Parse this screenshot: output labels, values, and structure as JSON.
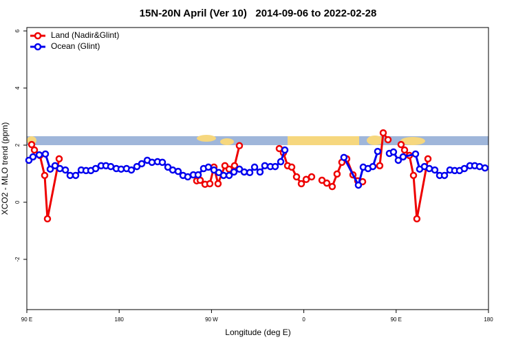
{
  "chart_data": {
    "type": "line",
    "title": "15N-20N April (Ver 10)   2014-09-06 to 2022-02-28",
    "xlabel": "Longitude (deg E)",
    "ylabel": "XCO2 - MLO trend (ppm)",
    "xlim": [
      90,
      540
    ],
    "xticks": [
      {
        "value": 90,
        "label": "90 E"
      },
      {
        "value": 180,
        "label": "180"
      },
      {
        "value": 270,
        "label": "90 W"
      },
      {
        "value": 360,
        "label": "0"
      },
      {
        "value": 450,
        "label": "90 E"
      },
      {
        "value": 540,
        "label": "180"
      }
    ],
    "ylim": [
      -3.76,
      6.12
    ],
    "yticks": [
      -2,
      0,
      2,
      4,
      6
    ],
    "legend": "upper left",
    "series": [
      {
        "name": "Land (Nadir&Glint)",
        "color": "#ee0000",
        "x": [
          94.7,
          97.4,
          102.7,
          107.4,
          110.1,
          121.5,
          200,
          255.6,
          259.0,
          263.7,
          268.4,
          272.4,
          276.4,
          283.1,
          287.2,
          292.5,
          297.2,
          320,
          336.1,
          340.1,
          344.2,
          348.2,
          352.9,
          357.6,
          362.3,
          367.6,
          372,
          377.7,
          382.4,
          387.7,
          392.4,
          397.1,
          401.8,
          407.9,
          412.6,
          417.3,
          425,
          434.0,
          437.4,
          442.1,
          446,
          454.8,
          458.2,
          462.9,
          466.9,
          470.2,
          481.0
        ],
        "values": [
          2.02,
          1.83,
          1.64,
          0.94,
          -0.58,
          1.52,
          null,
          0.75,
          0.77,
          0.63,
          0.65,
          1.23,
          0.65,
          1.28,
          1.16,
          1.28,
          1.98,
          null,
          1.88,
          1.73,
          1.28,
          1.23,
          0.89,
          0.65,
          0.8,
          0.89,
          null,
          0.77,
          0.67,
          0.55,
          0.99,
          1.4,
          1.52,
          0.96,
          0.75,
          0.72,
          null,
          1.28,
          2.43,
          2.19,
          null,
          2.02,
          1.83,
          1.64,
          0.94,
          -0.58,
          1.52
        ]
      },
      {
        "name": "Ocean (Glint)",
        "color": "#0000ee",
        "x": [
          92.0,
          96.0,
          102.1,
          108.1,
          112.8,
          117.5,
          122.2,
          127.6,
          132.2,
          137.6,
          143.0,
          147.7,
          152.4,
          157.1,
          162.4,
          167.1,
          171.8,
          177.2,
          181.9,
          187.2,
          191.9,
          197.3,
          202.0,
          207.4,
          212.0,
          217.4,
          222.1,
          227.5,
          232.2,
          237.5,
          242.2,
          246.9,
          252.3,
          257.0,
          262.3,
          267.0,
          272.4,
          277.1,
          281.8,
          287.2,
          291.9,
          297.2,
          301.9,
          307.3,
          312.0,
          317.3,
          322.0,
          327.4,
          332.1,
          337.5,
          341.5,
          370,
          399.1,
          413.2,
          417.9,
          422.6,
          427.3,
          432.0,
          436,
          443.4,
          447.4,
          452.1,
          456.8,
          468.9,
          472.9,
          477.6,
          482.3,
          487.7,
          492.4,
          497.1,
          502.4,
          507.1,
          511.8,
          516.5,
          521.9,
          526.6,
          531.3,
          536.6
        ],
        "values": [
          1.47,
          1.59,
          1.66,
          1.69,
          1.16,
          1.28,
          1.18,
          1.13,
          0.94,
          0.94,
          1.13,
          1.11,
          1.11,
          1.18,
          1.28,
          1.28,
          1.25,
          1.18,
          1.16,
          1.18,
          1.13,
          1.25,
          1.35,
          1.47,
          1.4,
          1.42,
          1.4,
          1.23,
          1.13,
          1.08,
          0.94,
          0.89,
          0.96,
          0.96,
          1.18,
          1.23,
          1.13,
          1.04,
          0.94,
          0.94,
          1.06,
          1.16,
          1.06,
          1.04,
          1.23,
          1.06,
          1.28,
          1.25,
          1.25,
          1.42,
          1.83,
          null,
          1.57,
          0.6,
          1.23,
          1.18,
          1.25,
          1.78,
          null,
          1.71,
          1.76,
          1.47,
          1.59,
          1.69,
          1.16,
          1.25,
          1.18,
          1.13,
          0.94,
          0.94,
          1.13,
          1.11,
          1.11,
          1.18,
          1.28,
          1.28,
          1.25,
          1.2
        ]
      }
    ]
  }
}
